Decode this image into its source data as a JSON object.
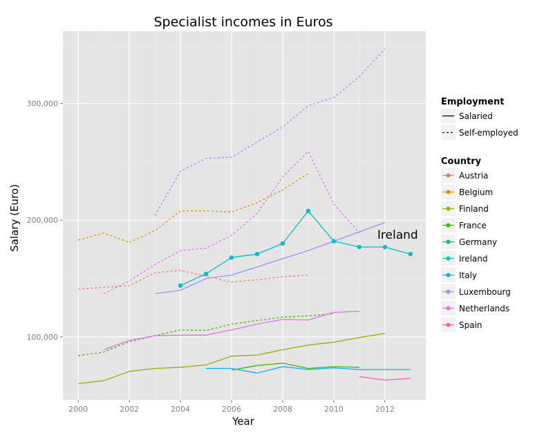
{
  "chart_data": {
    "type": "line",
    "title": "Specialist incomes in Euros",
    "xlabel": "Year",
    "ylabel": "Salary (Euro)",
    "xlim": [
      1999.4,
      2013.6
    ],
    "ylim": [
      46000,
      362000
    ],
    "x_ticks": [
      2000,
      2002,
      2004,
      2006,
      2008,
      2010,
      2012
    ],
    "x_tick_labels": [
      "2000",
      "2002",
      "2004",
      "2006",
      "2008",
      "2010",
      "2012"
    ],
    "y_ticks": [
      100000,
      200000,
      300000
    ],
    "y_tick_labels": [
      "100,000",
      "200,000",
      "300,000"
    ],
    "grid": true,
    "legend_position": "right",
    "annotation": {
      "text": "Ireland",
      "x": 2012.5,
      "y": 184000
    },
    "legend": {
      "employment_title": "Employment",
      "employment_items": [
        {
          "label": "Salaried",
          "dash": "solid"
        },
        {
          "label": "Self-employed",
          "dash": "dotted"
        }
      ],
      "country_title": "Country",
      "country_items": [
        {
          "label": "Austria",
          "color": "#F8766D"
        },
        {
          "label": "Belgium",
          "color": "#D89000"
        },
        {
          "label": "Finland",
          "color": "#A3A500"
        },
        {
          "label": "France",
          "color": "#39B600"
        },
        {
          "label": "Germany",
          "color": "#00BF7D"
        },
        {
          "label": "Ireland",
          "color": "#00BFC4"
        },
        {
          "label": "Italy",
          "color": "#00B0F6"
        },
        {
          "label": "Luxembourg",
          "color": "#9590FF"
        },
        {
          "label": "Netherlands",
          "color": "#E76BF3"
        },
        {
          "label": "Spain",
          "color": "#FF62BC"
        }
      ]
    },
    "series": [
      {
        "country": "Luxembourg",
        "employment": "Self-employed",
        "color": "#9590FF",
        "dash": "dotted",
        "points": [
          [
            2003,
            204000
          ],
          [
            2004,
            242000
          ],
          [
            2005,
            253000
          ],
          [
            2006,
            254000
          ],
          [
            2007,
            267000
          ],
          [
            2008,
            280000
          ],
          [
            2009,
            298000
          ],
          [
            2010,
            305000
          ],
          [
            2011,
            323000
          ],
          [
            2012,
            347000
          ]
        ]
      },
      {
        "country": "Netherlands",
        "employment": "Self-employed",
        "color": "#E76BF3",
        "dash": "dotted",
        "points": [
          [
            2001,
            137000
          ],
          [
            2002,
            148000
          ],
          [
            2003,
            162000
          ],
          [
            2004,
            174000
          ],
          [
            2005,
            176000
          ],
          [
            2006,
            187000
          ],
          [
            2007,
            206000
          ],
          [
            2008,
            237000
          ],
          [
            2009,
            259000
          ],
          [
            2010,
            214000
          ],
          [
            2011,
            189000
          ]
        ]
      },
      {
        "country": "Belgium",
        "employment": "Self-employed",
        "color": "#D89000",
        "dash": "dotted",
        "points": [
          [
            2000,
            183000
          ],
          [
            2001,
            189000
          ],
          [
            2002,
            181000
          ],
          [
            2003,
            191000
          ],
          [
            2004,
            208000
          ],
          [
            2005,
            208000
          ],
          [
            2006,
            207000
          ],
          [
            2007,
            215000
          ],
          [
            2008,
            226000
          ],
          [
            2009,
            240000
          ]
        ]
      },
      {
        "country": "Austria",
        "employment": "Self-employed",
        "color": "#F8766D",
        "dash": "dotted",
        "points": [
          [
            2000,
            141000
          ],
          [
            2001,
            142500
          ],
          [
            2002,
            144000
          ],
          [
            2003,
            155000
          ],
          [
            2004,
            157000
          ],
          [
            2005,
            152000
          ],
          [
            2006,
            147000
          ],
          [
            2007,
            149000
          ],
          [
            2008,
            151500
          ],
          [
            2009,
            153000
          ]
        ]
      },
      {
        "country": "France",
        "employment": "Self-employed",
        "color": "#39B600",
        "dash": "dotted",
        "points": [
          [
            2000,
            84000
          ],
          [
            2001,
            87000
          ],
          [
            2002,
            96000
          ],
          [
            2003,
            101000
          ],
          [
            2004,
            106000
          ],
          [
            2005,
            105500
          ],
          [
            2006,
            111000
          ],
          [
            2007,
            114000
          ],
          [
            2008,
            117000
          ],
          [
            2009,
            118000
          ],
          [
            2010,
            120000
          ]
        ]
      },
      {
        "country": "Luxembourg",
        "employment": "Salaried",
        "color": "#9590FF",
        "dash": "solid",
        "points": [
          [
            2003,
            137000
          ],
          [
            2004,
            140000
          ],
          [
            2005,
            150000
          ],
          [
            2006,
            153000
          ],
          [
            2007,
            160000
          ],
          [
            2008,
            167000
          ],
          [
            2009,
            174000
          ],
          [
            2010,
            182000
          ],
          [
            2011,
            190000
          ],
          [
            2012,
            198000
          ]
        ]
      },
      {
        "country": "Ireland",
        "employment": "Salaried",
        "color": "#00BFC4",
        "dash": "solid",
        "markers": true,
        "points": [
          [
            2004,
            144000
          ],
          [
            2005,
            154000
          ],
          [
            2006,
            168000
          ],
          [
            2007,
            171000
          ],
          [
            2008,
            180000
          ],
          [
            2009,
            208000
          ],
          [
            2010,
            182000
          ],
          [
            2011,
            177000
          ],
          [
            2012,
            177000
          ],
          [
            2013,
            171000
          ]
        ]
      },
      {
        "country": "Netherlands",
        "employment": "Salaried",
        "color": "#E76BF3",
        "dash": "solid",
        "points": [
          [
            2001,
            89000
          ],
          [
            2002,
            97000
          ],
          [
            2003,
            101000
          ],
          [
            2004,
            101500
          ],
          [
            2005,
            101500
          ],
          [
            2006,
            106000
          ],
          [
            2007,
            111000
          ],
          [
            2008,
            115000
          ],
          [
            2009,
            114500
          ],
          [
            2010,
            121000
          ],
          [
            2011,
            122000
          ]
        ]
      },
      {
        "country": "Finland",
        "employment": "Salaried",
        "color": "#A3A500",
        "dash": "solid",
        "points": [
          [
            2000,
            60000
          ],
          [
            2001,
            62500
          ],
          [
            2002,
            70500
          ],
          [
            2003,
            73000
          ],
          [
            2004,
            74000
          ],
          [
            2005,
            76000
          ],
          [
            2006,
            83500
          ],
          [
            2007,
            84500
          ],
          [
            2008,
            89000
          ],
          [
            2009,
            93000
          ],
          [
            2010,
            95500
          ],
          [
            2011,
            99500
          ],
          [
            2012,
            103000
          ]
        ]
      },
      {
        "country": "France",
        "employment": "Salaried",
        "color": "#39B600",
        "dash": "solid",
        "points": [
          [
            2006,
            71500
          ],
          [
            2007,
            75500
          ],
          [
            2008,
            77500
          ],
          [
            2009,
            73000
          ],
          [
            2010,
            74500
          ],
          [
            2011,
            74000
          ]
        ]
      },
      {
        "country": "Italy",
        "employment": "Salaried",
        "color": "#00B0F6",
        "dash": "solid",
        "points": [
          [
            2005,
            73000
          ],
          [
            2006,
            73000
          ],
          [
            2007,
            69000
          ],
          [
            2008,
            74500
          ],
          [
            2009,
            72000
          ],
          [
            2010,
            73500
          ],
          [
            2011,
            72000
          ],
          [
            2012,
            72000
          ],
          [
            2013,
            72000
          ]
        ]
      },
      {
        "country": "Spain",
        "employment": "Salaried",
        "color": "#FF62BC",
        "dash": "solid",
        "points": [
          [
            2011,
            66000
          ],
          [
            2012,
            63000
          ],
          [
            2013,
            64500
          ]
        ]
      }
    ]
  }
}
